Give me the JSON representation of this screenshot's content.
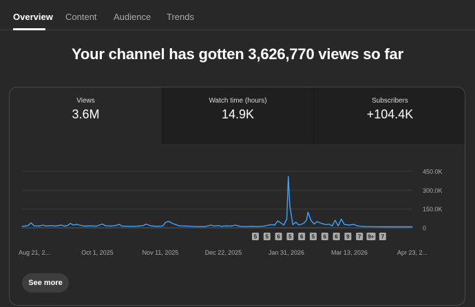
{
  "tabs": [
    {
      "label": "Overview",
      "active": true
    },
    {
      "label": "Content",
      "active": false
    },
    {
      "label": "Audience",
      "active": false
    },
    {
      "label": "Trends",
      "active": false
    }
  ],
  "headline": "Your channel has gotten 3,626,770 views so far",
  "metrics": [
    {
      "label": "Views",
      "value": "3.6M",
      "selected": true
    },
    {
      "label": "Watch time (hours)",
      "value": "14.9K",
      "selected": false
    },
    {
      "label": "Subscribers",
      "value": "+104.4K",
      "selected": false
    }
  ],
  "see_more_label": "See more",
  "colors": {
    "background": "#282828",
    "line": "#3ea6ff",
    "tab_active": "#ffffff",
    "marker_bg": "#aaaaaa"
  },
  "chart_data": {
    "type": "line",
    "y_tick_labels": [
      "450.0K",
      "300.0K",
      "150.0K",
      "0"
    ],
    "y_ticks": [
      450000,
      300000,
      150000,
      0
    ],
    "ylim": [
      0,
      450000
    ],
    "x_tick_labels": [
      "Aug 21, 2...",
      "Oct 1, 2025",
      "Nov 11, 2025",
      "Dec 22, 2025",
      "Jan 31, 2026",
      "Mar 13, 2026",
      "Apr 23, 2..."
    ],
    "xlim": [
      "2025-08-21",
      "2026-05-06"
    ],
    "grid": true,
    "series": [
      {
        "values": [
          [
            "2025-08-21",
            12000
          ],
          [
            "2025-08-23",
            15000
          ],
          [
            "2025-08-25",
            18000
          ],
          [
            "2025-08-27",
            40000
          ],
          [
            "2025-08-29",
            16000
          ],
          [
            "2025-09-01",
            14000
          ],
          [
            "2025-09-04",
            22000
          ],
          [
            "2025-09-06",
            14000
          ],
          [
            "2025-09-09",
            18000
          ],
          [
            "2025-09-12",
            14000
          ],
          [
            "2025-09-16",
            22000
          ],
          [
            "2025-09-18",
            14000
          ],
          [
            "2025-09-20",
            18000
          ],
          [
            "2025-09-22",
            35000
          ],
          [
            "2025-09-24",
            22000
          ],
          [
            "2025-09-26",
            28000
          ],
          [
            "2025-09-28",
            22000
          ],
          [
            "2025-10-01",
            14000
          ],
          [
            "2025-10-05",
            16000
          ],
          [
            "2025-10-09",
            13000
          ],
          [
            "2025-10-13",
            30000
          ],
          [
            "2025-10-15",
            18000
          ],
          [
            "2025-10-18",
            14000
          ],
          [
            "2025-10-22",
            18000
          ],
          [
            "2025-10-24",
            28000
          ],
          [
            "2025-10-26",
            14000
          ],
          [
            "2025-11-01",
            12000
          ],
          [
            "2025-11-06",
            14000
          ],
          [
            "2025-11-09",
            18000
          ],
          [
            "2025-11-11",
            30000
          ],
          [
            "2025-11-14",
            16000
          ],
          [
            "2025-11-18",
            12000
          ],
          [
            "2025-11-22",
            15000
          ],
          [
            "2025-11-24",
            45000
          ],
          [
            "2025-11-26",
            52000
          ],
          [
            "2025-11-28",
            38000
          ],
          [
            "2025-11-30",
            28000
          ],
          [
            "2025-12-03",
            16000
          ],
          [
            "2025-12-08",
            14000
          ],
          [
            "2025-12-14",
            10000
          ],
          [
            "2025-12-20",
            10000
          ],
          [
            "2025-12-24",
            22000
          ],
          [
            "2025-12-26",
            14000
          ],
          [
            "2025-12-29",
            18000
          ],
          [
            "2025-12-31",
            12000
          ],
          [
            "2026-01-03",
            16000
          ],
          [
            "2026-01-06",
            14000
          ],
          [
            "2026-01-09",
            22000
          ],
          [
            "2026-01-12",
            12000
          ],
          [
            "2026-01-16",
            10000
          ],
          [
            "2026-01-20",
            12000
          ],
          [
            "2026-01-24",
            10000
          ],
          [
            "2026-01-28",
            14000
          ],
          [
            "2026-01-31",
            22000
          ],
          [
            "2026-02-02",
            25000
          ],
          [
            "2026-02-04",
            22000
          ],
          [
            "2026-02-06",
            55000
          ],
          [
            "2026-02-08",
            40000
          ],
          [
            "2026-02-10",
            22000
          ],
          [
            "2026-02-12",
            70000
          ],
          [
            "2026-02-13",
            410000
          ],
          [
            "2026-02-14",
            175000
          ],
          [
            "2026-02-16",
            25000
          ],
          [
            "2026-02-18",
            45000
          ],
          [
            "2026-02-20",
            22000
          ],
          [
            "2026-02-23",
            35000
          ],
          [
            "2026-02-25",
            60000
          ],
          [
            "2026-02-26",
            125000
          ],
          [
            "2026-02-28",
            60000
          ],
          [
            "2026-03-02",
            30000
          ],
          [
            "2026-03-04",
            50000
          ],
          [
            "2026-03-07",
            35000
          ],
          [
            "2026-03-10",
            25000
          ],
          [
            "2026-03-12",
            30000
          ],
          [
            "2026-03-14",
            15000
          ],
          [
            "2026-03-16",
            60000
          ],
          [
            "2026-03-18",
            15000
          ],
          [
            "2026-03-20",
            70000
          ],
          [
            "2026-03-22",
            28000
          ],
          [
            "2026-03-25",
            22000
          ],
          [
            "2026-03-28",
            28000
          ],
          [
            "2026-03-31",
            15000
          ],
          [
            "2026-04-05",
            10000
          ],
          [
            "2026-04-12",
            9000
          ],
          [
            "2026-04-20",
            8000
          ],
          [
            "2026-04-28",
            8000
          ],
          [
            "2026-05-06",
            8000
          ]
        ]
      }
    ],
    "markers": [
      {
        "label": "5",
        "date": "2026-01-30"
      },
      {
        "label": "5",
        "date": "2026-02-03"
      },
      {
        "label": "6",
        "date": "2026-02-06"
      },
      {
        "label": "5",
        "date": "2026-02-09"
      },
      {
        "label": "6",
        "date": "2026-02-12"
      },
      {
        "label": "5",
        "date": "2026-02-16"
      },
      {
        "label": "6",
        "date": "2026-02-19"
      },
      {
        "label": "6",
        "date": "2026-02-22"
      },
      {
        "label": "9",
        "date": "2026-02-25"
      },
      {
        "label": "7",
        "date": "2026-02-28"
      },
      {
        "label": "9+",
        "date": "2026-03-03"
      },
      {
        "label": "7",
        "date": "2026-03-06"
      }
    ]
  }
}
